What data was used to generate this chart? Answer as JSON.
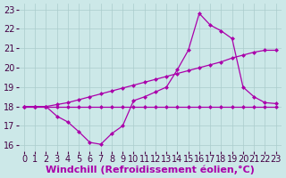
{
  "xlabel": "Windchill (Refroidissement éolien,°C)",
  "background_color": "#cce8e8",
  "grid_color": "#aacccc",
  "line_color": "#aa00aa",
  "xlim": [
    -0.5,
    23.5
  ],
  "ylim": [
    15.7,
    23.3
  ],
  "xticks": [
    0,
    1,
    2,
    3,
    4,
    5,
    6,
    7,
    8,
    9,
    10,
    11,
    12,
    13,
    14,
    15,
    16,
    17,
    18,
    19,
    20,
    21,
    22,
    23
  ],
  "yticks": [
    16,
    17,
    18,
    19,
    20,
    21,
    22,
    23
  ],
  "line_flat_x": [
    0,
    1,
    2,
    3,
    4,
    5,
    6,
    7,
    8,
    9,
    10,
    11,
    12,
    13,
    14,
    15,
    16,
    17,
    18,
    19,
    20,
    21,
    22,
    23
  ],
  "line_flat_y": [
    18,
    18,
    18,
    18,
    18,
    18,
    18,
    18,
    18,
    18,
    18,
    18,
    18,
    18,
    18,
    18,
    18,
    18,
    18,
    18,
    18,
    18,
    18,
    18
  ],
  "line_diag_x": [
    0,
    1,
    2,
    3,
    4,
    5,
    6,
    7,
    8,
    9,
    10,
    11,
    12,
    13,
    14,
    15,
    16,
    17,
    18,
    19,
    20,
    21,
    22,
    23
  ],
  "line_diag_y": [
    18.0,
    18.0,
    18.0,
    18.1,
    18.2,
    18.35,
    18.5,
    18.65,
    18.8,
    18.95,
    19.1,
    19.25,
    19.4,
    19.55,
    19.7,
    19.85,
    20.0,
    20.15,
    20.3,
    20.5,
    20.65,
    20.8,
    20.9,
    20.9
  ],
  "line_curve_x": [
    0,
    1,
    2,
    3,
    4,
    5,
    6,
    7,
    8,
    9,
    10,
    11,
    12,
    13,
    14,
    15,
    16,
    17,
    18,
    19,
    20,
    21,
    22,
    23
  ],
  "line_curve_y": [
    18.0,
    18.0,
    18.0,
    17.5,
    17.2,
    16.7,
    16.15,
    16.05,
    16.6,
    17.0,
    18.3,
    18.5,
    18.75,
    19.0,
    19.9,
    20.9,
    22.8,
    22.2,
    21.9,
    21.5,
    19.0,
    18.5,
    18.2,
    18.15
  ],
  "tick_fontsize": 7,
  "xlabel_fontsize": 8
}
